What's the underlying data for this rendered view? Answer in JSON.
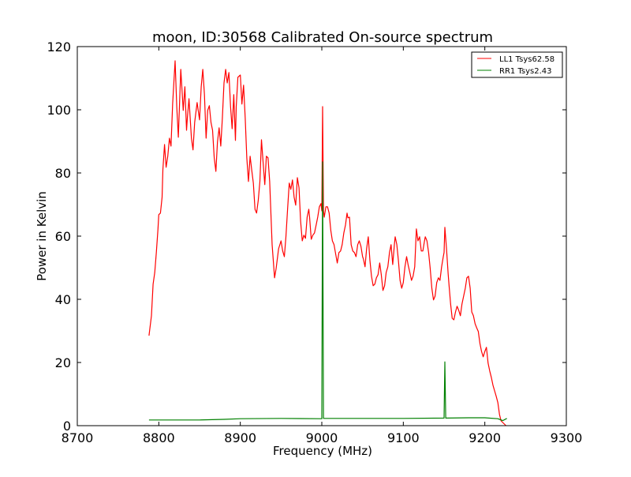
{
  "chart_data": {
    "type": "line",
    "title": "moon, ID:30568 Calibrated On-source spectrum",
    "xlabel": "Frequency (MHz)",
    "ylabel": "Power in Kelvin",
    "xlim": [
      8700,
      9300
    ],
    "ylim": [
      0,
      120
    ],
    "xticks": [
      8700,
      8800,
      8900,
      9000,
      9100,
      9200,
      9300
    ],
    "yticks": [
      0,
      20,
      40,
      60,
      80,
      100,
      120
    ],
    "grid": false,
    "legend_position": "top-right",
    "series": [
      {
        "name": "LL1 Tsys62.58",
        "color": "#ff0000",
        "points": [
          [
            8788,
            28.5
          ],
          [
            8791,
            34.8
          ],
          [
            8793,
            44.8
          ],
          [
            8795,
            48.5
          ],
          [
            8797,
            54.8
          ],
          [
            8799,
            62.3
          ],
          [
            8800,
            66.8
          ],
          [
            8802,
            67.3
          ],
          [
            8804,
            72.3
          ],
          [
            8805,
            81
          ],
          [
            8807,
            89
          ],
          [
            8809,
            81.8
          ],
          [
            8811,
            85.3
          ],
          [
            8813,
            91
          ],
          [
            8815,
            88.5
          ],
          [
            8817,
            102
          ],
          [
            8820,
            115.5
          ],
          [
            8822,
            101
          ],
          [
            8824,
            91.3
          ],
          [
            8827,
            112.8
          ],
          [
            8830,
            99.8
          ],
          [
            8832,
            107.3
          ],
          [
            8834,
            93.5
          ],
          [
            8835,
            97.3
          ],
          [
            8837,
            103.5
          ],
          [
            8840,
            91
          ],
          [
            8842,
            87.3
          ],
          [
            8844,
            96
          ],
          [
            8847,
            102.3
          ],
          [
            8850,
            96.8
          ],
          [
            8852,
            107.3
          ],
          [
            8854,
            112.8
          ],
          [
            8856,
            104.8
          ],
          [
            8858,
            91
          ],
          [
            8860,
            99.8
          ],
          [
            8862,
            101.3
          ],
          [
            8864,
            96
          ],
          [
            8866,
            93.5
          ],
          [
            8868,
            84.8
          ],
          [
            8870,
            80.5
          ],
          [
            8872,
            89.8
          ],
          [
            8874,
            94.3
          ],
          [
            8876,
            88.5
          ],
          [
            8878,
            97.3
          ],
          [
            8880,
            108.5
          ],
          [
            8882,
            112.8
          ],
          [
            8884,
            108.5
          ],
          [
            8886,
            111.8
          ],
          [
            8888,
            101
          ],
          [
            8890,
            94
          ],
          [
            8892,
            104.8
          ],
          [
            8894,
            90.3
          ],
          [
            8895,
            101
          ],
          [
            8897,
            110.3
          ],
          [
            8900,
            111
          ],
          [
            8902,
            101.8
          ],
          [
            8904,
            107.8
          ],
          [
            8906,
            97.3
          ],
          [
            8908,
            84.8
          ],
          [
            8910,
            77.3
          ],
          [
            8912,
            85.3
          ],
          [
            8914,
            81
          ],
          [
            8916,
            76.8
          ],
          [
            8918,
            68.5
          ],
          [
            8920,
            67.3
          ],
          [
            8922,
            71.3
          ],
          [
            8924,
            77.3
          ],
          [
            8926,
            90.5
          ],
          [
            8928,
            83.3
          ],
          [
            8930,
            76.3
          ],
          [
            8932,
            85.3
          ],
          [
            8934,
            84.8
          ],
          [
            8936,
            77.3
          ],
          [
            8939,
            57.3
          ],
          [
            8942,
            46.8
          ],
          [
            8944,
            49.8
          ],
          [
            8947,
            56
          ],
          [
            8950,
            58.5
          ],
          [
            8952,
            55.3
          ],
          [
            8954,
            53.5
          ],
          [
            8956,
            59.8
          ],
          [
            8958,
            68.5
          ],
          [
            8960,
            76.8
          ],
          [
            8962,
            74.8
          ],
          [
            8964,
            77.8
          ],
          [
            8966,
            72.3
          ],
          [
            8968,
            69.8
          ],
          [
            8970,
            78.5
          ],
          [
            8972,
            75.3
          ],
          [
            8974,
            64.8
          ],
          [
            8976,
            58.5
          ],
          [
            8978,
            60.3
          ],
          [
            8980,
            59.3
          ],
          [
            8982,
            66
          ],
          [
            8984,
            68.5
          ],
          [
            8985,
            66
          ],
          [
            8987,
            59
          ],
          [
            8989,
            60.3
          ],
          [
            8991,
            61
          ],
          [
            8993,
            63.5
          ],
          [
            8995,
            66
          ],
          [
            8997,
            69.3
          ],
          [
            8999,
            70.3
          ],
          [
            9000,
            68
          ],
          [
            9001,
            101
          ],
          [
            9002,
            68
          ],
          [
            9003,
            66
          ],
          [
            9005,
            69.3
          ],
          [
            9007,
            69.3
          ],
          [
            9009,
            67.3
          ],
          [
            9011,
            61.8
          ],
          [
            9013,
            58.5
          ],
          [
            9015,
            57.3
          ],
          [
            9017,
            54.3
          ],
          [
            9019,
            51.5
          ],
          [
            9021,
            54.8
          ],
          [
            9023,
            55.3
          ],
          [
            9025,
            57.3
          ],
          [
            9027,
            61
          ],
          [
            9029,
            63.5
          ],
          [
            9031,
            67.3
          ],
          [
            9032,
            65.8
          ],
          [
            9034,
            66
          ],
          [
            9036,
            57.3
          ],
          [
            9038,
            55.3
          ],
          [
            9040,
            54.8
          ],
          [
            9042,
            53.5
          ],
          [
            9044,
            57.3
          ],
          [
            9046,
            58.5
          ],
          [
            9048,
            56.8
          ],
          [
            9050,
            53.5
          ],
          [
            9051,
            52.8
          ],
          [
            9053,
            50.3
          ],
          [
            9055,
            56
          ],
          [
            9057,
            59.8
          ],
          [
            9059,
            52.3
          ],
          [
            9061,
            47.3
          ],
          [
            9063,
            44.3
          ],
          [
            9065,
            44.8
          ],
          [
            9067,
            46.8
          ],
          [
            9069,
            47.8
          ],
          [
            9071,
            51.5
          ],
          [
            9073,
            47.8
          ],
          [
            9075,
            42.8
          ],
          [
            9077,
            44.3
          ],
          [
            9079,
            48.5
          ],
          [
            9081,
            50.3
          ],
          [
            9083,
            54.8
          ],
          [
            9085,
            57.3
          ],
          [
            9087,
            51
          ],
          [
            9089,
            57.3
          ],
          [
            9090,
            59.8
          ],
          [
            9092,
            57.3
          ],
          [
            9094,
            52.3
          ],
          [
            9096,
            46
          ],
          [
            9098,
            43.5
          ],
          [
            9100,
            45.3
          ],
          [
            9102,
            50.3
          ],
          [
            9104,
            53.5
          ],
          [
            9106,
            50.8
          ],
          [
            9108,
            48.5
          ],
          [
            9110,
            46
          ],
          [
            9112,
            47.3
          ],
          [
            9114,
            50.3
          ],
          [
            9116,
            62.3
          ],
          [
            9118,
            58.5
          ],
          [
            9120,
            59.8
          ],
          [
            9122,
            55.3
          ],
          [
            9124,
            55.3
          ],
          [
            9126,
            58.5
          ],
          [
            9127,
            59.8
          ],
          [
            9129,
            58.5
          ],
          [
            9131,
            54.8
          ],
          [
            9133,
            49.8
          ],
          [
            9135,
            43.5
          ],
          [
            9137,
            39.8
          ],
          [
            9139,
            41
          ],
          [
            9141,
            45.3
          ],
          [
            9143,
            46.8
          ],
          [
            9145,
            46
          ],
          [
            9147,
            50.3
          ],
          [
            9149,
            53.5
          ],
          [
            9150,
            54.8
          ],
          [
            9151,
            62.8
          ],
          [
            9153,
            56
          ],
          [
            9155,
            48
          ],
          [
            9156,
            44.8
          ],
          [
            9158,
            38.5
          ],
          [
            9160,
            34
          ],
          [
            9162,
            33.5
          ],
          [
            9164,
            36
          ],
          [
            9166,
            37.8
          ],
          [
            9168,
            36.5
          ],
          [
            9170,
            34.8
          ],
          [
            9172,
            38.5
          ],
          [
            9174,
            41
          ],
          [
            9176,
            43.5
          ],
          [
            9178,
            46.8
          ],
          [
            9180,
            47.3
          ],
          [
            9182,
            43.5
          ],
          [
            9184,
            36
          ],
          [
            9186,
            34.8
          ],
          [
            9188,
            32.3
          ],
          [
            9190,
            31
          ],
          [
            9192,
            29.8
          ],
          [
            9194,
            26
          ],
          [
            9196,
            23.5
          ],
          [
            9198,
            21.8
          ],
          [
            9200,
            23.5
          ],
          [
            9202,
            24.8
          ],
          [
            9204,
            19.8
          ],
          [
            9206,
            17.3
          ],
          [
            9208,
            15.3
          ],
          [
            9210,
            12.8
          ],
          [
            9212,
            11
          ],
          [
            9214,
            9.3
          ],
          [
            9216,
            7.3
          ],
          [
            9218,
            3.5
          ],
          [
            9220,
            1.5
          ],
          [
            9224,
            0.5
          ],
          [
            9226,
            0
          ]
        ]
      },
      {
        "name": "RR1 Tsys2.43",
        "color": "#008000",
        "points": [
          [
            8788,
            1.8
          ],
          [
            8820,
            1.8
          ],
          [
            8850,
            1.8
          ],
          [
            8880,
            2.0
          ],
          [
            8900,
            2.2
          ],
          [
            8950,
            2.3
          ],
          [
            8999,
            2.2
          ],
          [
            9000,
            2.2
          ],
          [
            9001,
            83.5
          ],
          [
            9002,
            2.3
          ],
          [
            9050,
            2.3
          ],
          [
            9100,
            2.3
          ],
          [
            9150,
            2.4
          ],
          [
            9151,
            20.2
          ],
          [
            9152,
            2.4
          ],
          [
            9180,
            2.5
          ],
          [
            9200,
            2.5
          ],
          [
            9216,
            2.2
          ],
          [
            9222,
            1.6
          ],
          [
            9227,
            2.3
          ]
        ]
      }
    ]
  }
}
